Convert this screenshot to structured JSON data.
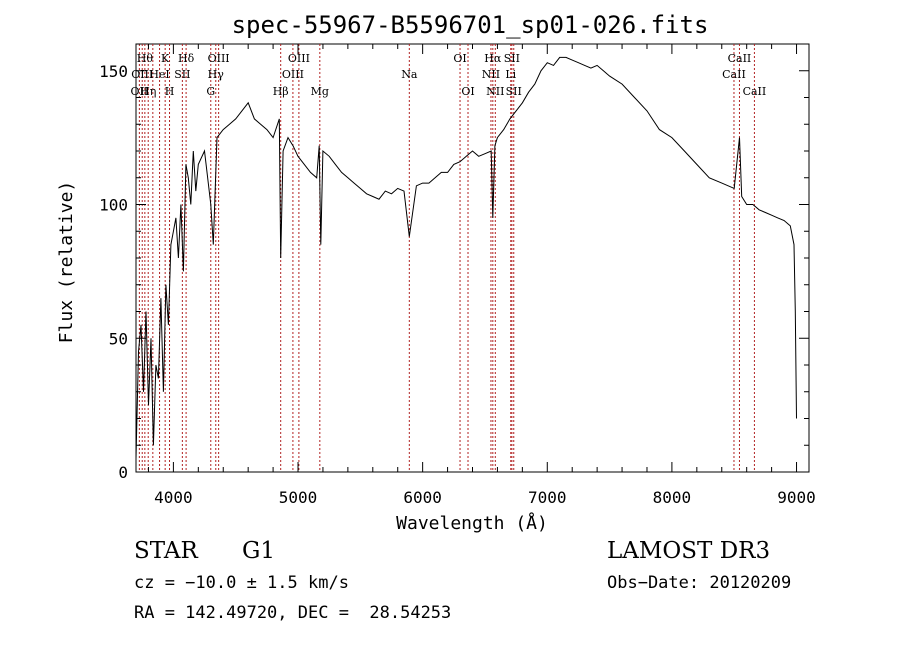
{
  "chart_data": {
    "type": "line",
    "title": "spec-55967-B5596701_sp01-026.fits",
    "xlabel": "Wavelength (Å)",
    "ylabel": "Flux (relative)",
    "xlim": [
      3700,
      9100
    ],
    "ylim": [
      0,
      160
    ],
    "xticks": [
      4000,
      5000,
      6000,
      7000,
      8000,
      9000
    ],
    "yticks": [
      0,
      50,
      100,
      150
    ],
    "grid": false,
    "line_color": "#000000",
    "marker_color": "#b22222",
    "spectrum": {
      "x": [
        3700,
        3720,
        3740,
        3760,
        3780,
        3800,
        3820,
        3840,
        3860,
        3880,
        3900,
        3920,
        3940,
        3960,
        3980,
        4000,
        4020,
        4040,
        4060,
        4080,
        4100,
        4120,
        4140,
        4160,
        4180,
        4200,
        4250,
        4300,
        4320,
        4350,
        4400,
        4450,
        4500,
        4550,
        4600,
        4650,
        4700,
        4750,
        4800,
        4850,
        4861,
        4880,
        4920,
        4960,
        5000,
        5050,
        5100,
        5150,
        5170,
        5183,
        5200,
        5250,
        5300,
        5350,
        5400,
        5450,
        5500,
        5550,
        5600,
        5650,
        5700,
        5750,
        5800,
        5850,
        5893,
        5950,
        6000,
        6050,
        6100,
        6150,
        6200,
        6250,
        6300,
        6350,
        6400,
        6450,
        6500,
        6550,
        6563,
        6580,
        6600,
        6650,
        6700,
        6750,
        6800,
        6850,
        6900,
        6950,
        7000,
        7050,
        7100,
        7150,
        7200,
        7250,
        7300,
        7350,
        7400,
        7450,
        7500,
        7600,
        7700,
        7800,
        7900,
        8000,
        8100,
        8200,
        8300,
        8400,
        8500,
        8542,
        8560,
        8600,
        8650,
        8700,
        8750,
        8800,
        8850,
        8900,
        8950,
        8980,
        8990,
        9000
      ],
      "y": [
        5,
        45,
        55,
        30,
        60,
        25,
        50,
        10,
        40,
        35,
        65,
        30,
        70,
        55,
        85,
        90,
        95,
        80,
        100,
        75,
        115,
        110,
        100,
        120,
        105,
        115,
        120,
        100,
        85,
        125,
        128,
        130,
        132,
        135,
        138,
        132,
        130,
        128,
        125,
        132,
        80,
        120,
        125,
        122,
        118,
        115,
        112,
        110,
        122,
        85,
        120,
        118,
        115,
        112,
        110,
        108,
        106,
        104,
        103,
        102,
        105,
        104,
        106,
        105,
        88,
        107,
        108,
        108,
        110,
        112,
        112,
        115,
        116,
        118,
        120,
        118,
        119,
        120,
        95,
        122,
        125,
        128,
        132,
        135,
        138,
        142,
        145,
        150,
        153,
        152,
        155,
        155,
        154,
        153,
        152,
        151,
        152,
        150,
        148,
        145,
        140,
        135,
        128,
        125,
        120,
        115,
        110,
        108,
        106,
        125,
        103,
        100,
        100,
        98,
        97,
        96,
        95,
        94,
        92,
        85,
        60,
        20
      ]
    },
    "lines": [
      {
        "x": 3727,
        "label": "OII",
        "row": 2
      },
      {
        "x": 3750,
        "label": "OIII",
        "row": 1
      },
      {
        "x": 3771,
        "label": "Hθ",
        "row": 0
      },
      {
        "x": 3798,
        "label": "Hη",
        "row": 2
      },
      {
        "x": 3835,
        "label": "",
        "row": 2
      },
      {
        "x": 3889,
        "label": "HeI",
        "row": 1
      },
      {
        "x": 3934,
        "label": "K",
        "row": 0
      },
      {
        "x": 3969,
        "label": "H",
        "row": 2
      },
      {
        "x": 4072,
        "label": "SII",
        "row": 1
      },
      {
        "x": 4102,
        "label": "Hδ",
        "row": 0
      },
      {
        "x": 4300,
        "label": "G",
        "row": 2
      },
      {
        "x": 4340,
        "label": "Hγ",
        "row": 1
      },
      {
        "x": 4363,
        "label": "OIII",
        "row": 0
      },
      {
        "x": 4861,
        "label": "Hβ",
        "row": 2
      },
      {
        "x": 4959,
        "label": "OIII",
        "row": 1
      },
      {
        "x": 5007,
        "label": "OIII",
        "row": 0
      },
      {
        "x": 5175,
        "label": "Mg",
        "row": 2
      },
      {
        "x": 5893,
        "label": "Na",
        "row": 1
      },
      {
        "x": 6300,
        "label": "OI",
        "row": 0
      },
      {
        "x": 6364,
        "label": "OI",
        "row": 2
      },
      {
        "x": 6548,
        "label": "NII",
        "row": 1
      },
      {
        "x": 6563,
        "label": "Hα",
        "row": 0
      },
      {
        "x": 6583,
        "label": "NII",
        "row": 2
      },
      {
        "x": 6707,
        "label": "Li",
        "row": 1
      },
      {
        "x": 6716,
        "label": "SII",
        "row": 0
      },
      {
        "x": 6731,
        "label": "SII",
        "row": 2
      },
      {
        "x": 8498,
        "label": "CaII",
        "row": 1
      },
      {
        "x": 8542,
        "label": "CaII",
        "row": 0
      },
      {
        "x": 8662,
        "label": "CaII",
        "row": 2
      }
    ]
  },
  "info": {
    "object_class": "STAR",
    "subclass": "G1",
    "survey": "LAMOST DR3",
    "cz": "cz = −10.0 ± 1.5 km/s",
    "obs_date": "Obs−Date: 20120209",
    "coords": "RA = 142.49720, DEC =  28.54253"
  }
}
